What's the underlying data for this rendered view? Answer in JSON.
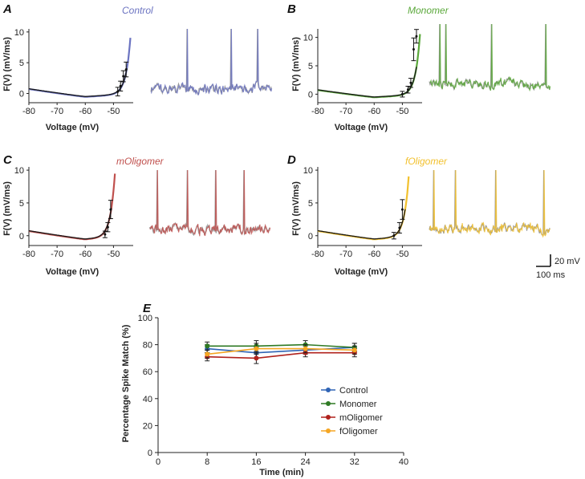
{
  "colors": {
    "control": "#6b73c1",
    "monomer": "#5aa83a",
    "moligomer": "#c0504d",
    "foligomer": "#f2c12e",
    "fit": "#1a1a1a",
    "trace_gray": "#9a9a9a",
    "summary_control": "#2f64b5",
    "summary_monomer": "#2f7a24",
    "summary_moligomer": "#b0211c",
    "summary_foligomer": "#f5a623"
  },
  "scale_bar": {
    "voltage_label": "20 mV",
    "time_label": "100 ms"
  },
  "chart_data": [
    {
      "panel": "A",
      "title": "Control",
      "type": "line",
      "xlabel": "Voltage (mV)",
      "ylabel": "F(V) (mV/ms)",
      "xlim": [
        -80,
        -43
      ],
      "ylim": [
        -1.5,
        10.5
      ],
      "xticks": [
        "-80",
        "-70",
        "-60",
        "-50"
      ],
      "xtick_values": [
        -80,
        -70,
        -60,
        -50
      ],
      "yticks": [
        "0",
        "5",
        "10"
      ],
      "ytick_values": [
        0,
        5,
        10
      ],
      "fit": {
        "a": 0.95,
        "b": 0.018,
        "vmin": -60,
        "beta": 0.55,
        "vt": -48.5
      },
      "errorbars": [
        {
          "v": -48.5,
          "y": 0.3,
          "e": 0.7
        },
        {
          "v": -47.5,
          "y": 1.2,
          "e": 0.8
        },
        {
          "v": -46.5,
          "y": 2.8,
          "e": 0.9
        },
        {
          "v": -45.5,
          "y": 3.9,
          "e": 1.2
        }
      ],
      "spike_times_ms": [
        90,
        200,
        265
      ]
    },
    {
      "panel": "B",
      "title": "Monomer",
      "type": "line",
      "xlabel": "Voltage (mV)",
      "ylabel": "F(V) (mV/ms)",
      "xlim": [
        -80,
        -43
      ],
      "ylim": [
        -1.5,
        11.5
      ],
      "xticks": [
        "-80",
        "-70",
        "-60",
        "-50"
      ],
      "xtick_values": [
        -80,
        -70,
        -60,
        -50
      ],
      "yticks": [
        "0",
        "5",
        "10"
      ],
      "ytick_values": [
        0,
        5,
        10
      ],
      "fit": {
        "a": 0.95,
        "b": 0.018,
        "vmin": -60,
        "beta": 0.75,
        "vt": -48
      },
      "errorbars": [
        {
          "v": -50,
          "y": 0.0,
          "e": 0.5
        },
        {
          "v": -48,
          "y": 0.8,
          "e": 0.6
        },
        {
          "v": -47,
          "y": 2.0,
          "e": 0.8
        },
        {
          "v": -46,
          "y": 7.9,
          "e": 2.0
        },
        {
          "v": -45,
          "y": 10.2,
          "e": 1.2
        }
      ],
      "spike_times_ms": [
        25,
        40,
        155,
        290
      ]
    },
    {
      "panel": "C",
      "title": "mOligomer",
      "type": "line",
      "xlabel": "Voltage (mV)",
      "ylabel": "F(V) (mV/ms)",
      "xlim": [
        -80,
        -43
      ],
      "ylim": [
        -1.5,
        10.5
      ],
      "xticks": [
        "-80",
        "-70",
        "-60",
        "-50"
      ],
      "xtick_values": [
        -80,
        -70,
        -60,
        -50
      ],
      "yticks": [
        "0",
        "5",
        "10"
      ],
      "ytick_values": [
        0,
        5,
        10
      ],
      "fit": {
        "a": 0.95,
        "b": 0.018,
        "vmin": -60,
        "beta": 0.8,
        "vt": -53.5
      },
      "errorbars": [
        {
          "v": -53,
          "y": 0.2,
          "e": 0.5
        },
        {
          "v": -52,
          "y": 1.3,
          "e": 0.7
        },
        {
          "v": -51,
          "y": 4.0,
          "e": 1.4
        }
      ],
      "spike_times_ms": [
        20,
        95,
        165,
        235
      ]
    },
    {
      "panel": "D",
      "title": "fOligomer",
      "type": "line",
      "xlabel": "Voltage (mV)",
      "ylabel": "F(V) (mV/ms)",
      "xlim": [
        -80,
        -43
      ],
      "ylim": [
        -1.5,
        10.5
      ],
      "xticks": [
        "-80",
        "-70",
        "-60",
        "-50"
      ],
      "xtick_values": [
        -80,
        -70,
        -60,
        -50
      ],
      "yticks": [
        "0",
        "5",
        "10"
      ],
      "ytick_values": [
        0,
        5,
        10
      ],
      "fit": {
        "a": 0.95,
        "b": 0.018,
        "vmin": -60,
        "beta": 0.65,
        "vt": -52
      },
      "errorbars": [
        {
          "v": -53,
          "y": 0.0,
          "e": 0.5
        },
        {
          "v": -51,
          "y": 1.2,
          "e": 0.8
        },
        {
          "v": -50,
          "y": 4.0,
          "e": 1.5
        }
      ],
      "spike_times_ms": [
        10,
        65,
        165,
        285
      ]
    },
    {
      "panel": "E",
      "type": "line",
      "xlabel": "Time (min)",
      "ylabel": "Percentage Spike Match (%)",
      "xlim": [
        0,
        40
      ],
      "ylim": [
        0,
        100
      ],
      "xticks": [
        "0",
        "8",
        "16",
        "24",
        "32",
        "40"
      ],
      "xtick_values": [
        0,
        8,
        16,
        24,
        32,
        40
      ],
      "yticks": [
        "0",
        "20",
        "40",
        "60",
        "80",
        "100"
      ],
      "ytick_values": [
        0,
        20,
        40,
        60,
        80,
        100
      ],
      "x": [
        8,
        16,
        24,
        32
      ],
      "legend_position": "lower-right",
      "series": [
        {
          "name": "Control",
          "key": "summary_control",
          "values": [
            77,
            74,
            76,
            78
          ],
          "errors": [
            3,
            4,
            3,
            3
          ]
        },
        {
          "name": "Monomer",
          "key": "summary_monomer",
          "values": [
            79,
            79,
            80,
            78
          ],
          "errors": [
            3,
            4,
            3,
            3
          ]
        },
        {
          "name": "mOligomer",
          "key": "summary_moligomer",
          "values": [
            71,
            70,
            74,
            74
          ],
          "errors": [
            3,
            4,
            3,
            3
          ]
        },
        {
          "name": "fOligomer",
          "key": "summary_foligomer",
          "values": [
            73,
            77,
            77,
            76
          ],
          "errors": [
            3,
            4,
            3,
            3
          ]
        }
      ]
    }
  ]
}
